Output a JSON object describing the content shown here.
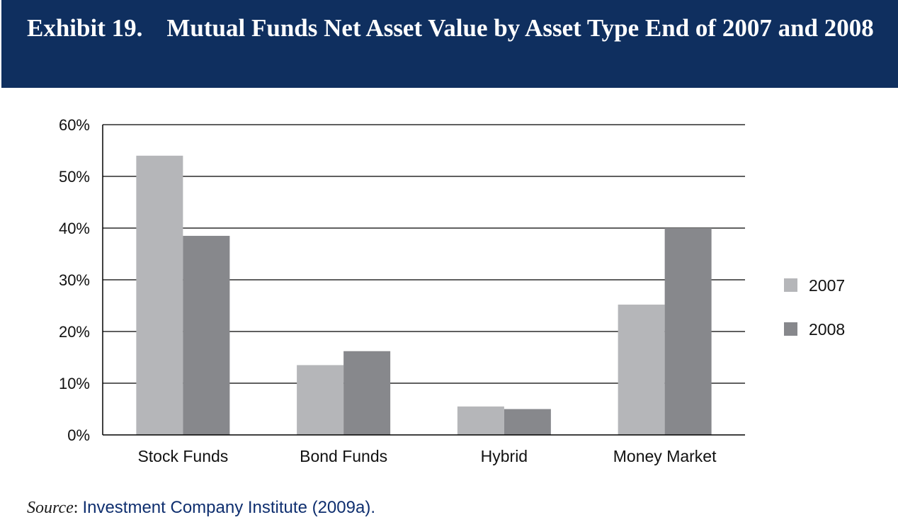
{
  "header": {
    "exhibit_label": "Exhibit 19.",
    "title": "Mutual Funds Net Asset Value by Asset Type End of 2007 and 2008"
  },
  "chart_data": {
    "type": "bar",
    "categories": [
      "Stock Funds",
      "Bond Funds",
      "Hybrid",
      "Money Market"
    ],
    "series": [
      {
        "name": "2007",
        "values": [
          54,
          13.5,
          5.5,
          25.2
        ],
        "color": "#b5b6b9"
      },
      {
        "name": "2008",
        "values": [
          38.5,
          16.2,
          5,
          40
        ],
        "color": "#87888c"
      }
    ],
    "ylim": [
      0,
      60
    ],
    "yticks": [
      "0%",
      "10%",
      "20%",
      "30%",
      "40%",
      "50%",
      "60%"
    ],
    "ytick_values": [
      0,
      10,
      20,
      30,
      40,
      50,
      60
    ],
    "grid": true,
    "legend_position": "right"
  },
  "source": {
    "label": "Source",
    "text": "Investment Company Institute (2009a)."
  }
}
